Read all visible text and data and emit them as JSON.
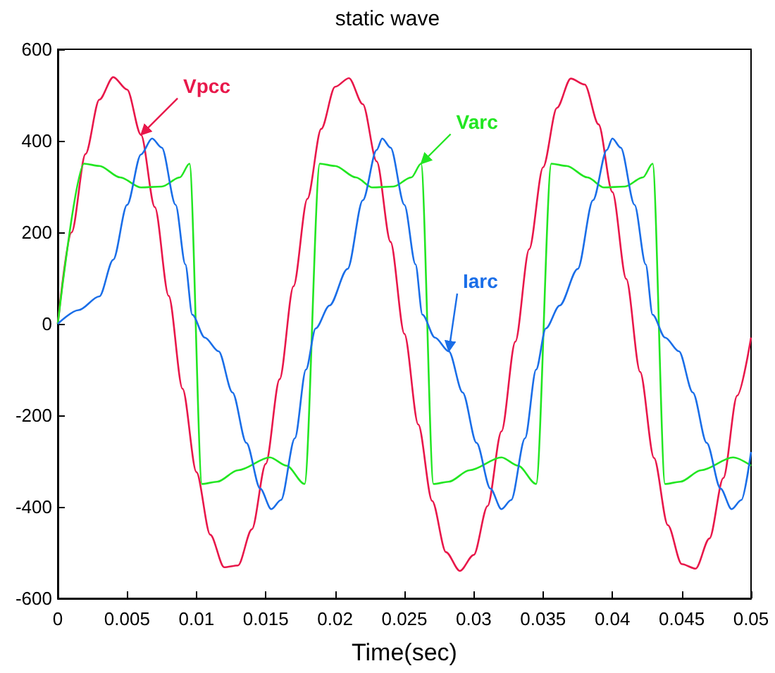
{
  "chart_data": {
    "type": "line",
    "title": "static wave",
    "xlabel": "Time(sec)",
    "xlim": [
      0,
      0.05
    ],
    "xticks": [
      0,
      0.005,
      0.01,
      0.015,
      0.02,
      0.025,
      0.03,
      0.035,
      0.04,
      0.045,
      0.05
    ],
    "ylim": [
      -600,
      600
    ],
    "yticks": [
      -600,
      -400,
      -200,
      0,
      200,
      400,
      600
    ],
    "grid": false,
    "marker": "none",
    "line_style": "solid",
    "annotations": [
      {
        "text": "Vpcc",
        "x": 0.006,
        "y": 413
      },
      {
        "text": "Varc",
        "x": 0.0262,
        "y": 350
      },
      {
        "text": "Iarc",
        "x": 0.0282,
        "y": -60
      }
    ],
    "series": [
      {
        "color": "#e8174a",
        "x": [
          0,
          0.001,
          0.002,
          0.003,
          0.004,
          0.005,
          0.006,
          0.007,
          0.008,
          0.009,
          0.01,
          0.011,
          0.012,
          0.013,
          0.014,
          0.015,
          0.016,
          0.017,
          0.018,
          0.019,
          0.02,
          0.021,
          0.022,
          0.023,
          0.024,
          0.025,
          0.026,
          0.027,
          0.028,
          0.029,
          0.03,
          0.031,
          0.032,
          0.033,
          0.034,
          0.035,
          0.036,
          0.037,
          0.038,
          0.039,
          0.04,
          0.041,
          0.042,
          0.043,
          0.044,
          0.045,
          0.046,
          0.047,
          0.048,
          0.049,
          0.05
        ],
        "values": [
          0,
          200,
          371,
          490,
          539,
          512,
          413,
          255,
          61,
          -142,
          -324,
          -461,
          -532,
          -528,
          -449,
          -306,
          -121,
          82,
          273,
          426,
          518,
          537,
          480,
          355,
          179,
          -22,
          -220,
          -387,
          -499,
          -540,
          -505,
          -398,
          -235,
          -39,
          163,
          342,
          472,
          536,
          523,
          436,
          288,
          98,
          -105,
          -293,
          -440,
          -525,
          -535,
          -469,
          -337,
          -157,
          -30
        ]
      },
      {
        "color": "#22e622",
        "x": [
          0,
          0.0019,
          0.003,
          0.0045,
          0.006,
          0.0075,
          0.0088,
          0.0095,
          0.0104,
          0.0115,
          0.013,
          0.0153,
          0.0165,
          0.0178,
          0.0189,
          0.02,
          0.0215,
          0.0227,
          0.0242,
          0.0255,
          0.0262,
          0.0271,
          0.0282,
          0.0297,
          0.032,
          0.0332,
          0.0345,
          0.0356,
          0.0367,
          0.0382,
          0.0394,
          0.0409,
          0.0422,
          0.0429,
          0.0438,
          0.0449,
          0.0464,
          0.0487,
          0.05
        ],
        "values": [
          0,
          350,
          345,
          320,
          298,
          300,
          320,
          350,
          -350,
          -345,
          -320,
          -292,
          -310,
          -350,
          350,
          345,
          320,
          298,
          300,
          320,
          350,
          -350,
          -345,
          -320,
          -292,
          -310,
          -350,
          350,
          345,
          320,
          298,
          300,
          320,
          350,
          -350,
          -345,
          -320,
          -292,
          -310
        ]
      },
      {
        "color": "#1a6ee8",
        "x": [
          0,
          0.0015,
          0.003,
          0.004,
          0.005,
          0.006,
          0.0068,
          0.0075,
          0.0085,
          0.0092,
          0.0097,
          0.0106,
          0.0116,
          0.0126,
          0.0136,
          0.0146,
          0.0154,
          0.0161,
          0.0171,
          0.0179,
          0.0186,
          0.0196,
          0.0209,
          0.022,
          0.023,
          0.0234,
          0.024,
          0.025,
          0.0258,
          0.0263,
          0.0272,
          0.0282,
          0.0292,
          0.0302,
          0.0312,
          0.032,
          0.0327,
          0.0337,
          0.0345,
          0.0352,
          0.0362,
          0.0375,
          0.0386,
          0.0396,
          0.04,
          0.0406,
          0.0416,
          0.0424,
          0.0429,
          0.0438,
          0.0448,
          0.0458,
          0.0468,
          0.0478,
          0.0486,
          0.0493,
          0.05
        ],
        "values": [
          0,
          30,
          60,
          140,
          260,
          370,
          405,
          385,
          260,
          130,
          20,
          -30,
          -60,
          -150,
          -260,
          -360,
          -405,
          -385,
          -250,
          -100,
          -10,
          40,
          120,
          270,
          380,
          405,
          385,
          260,
          130,
          20,
          -30,
          -60,
          -150,
          -260,
          -360,
          -405,
          -385,
          -250,
          -100,
          -10,
          40,
          120,
          270,
          380,
          405,
          385,
          260,
          130,
          20,
          -30,
          -60,
          -150,
          -260,
          -360,
          -405,
          -385,
          -280
        ]
      }
    ]
  }
}
